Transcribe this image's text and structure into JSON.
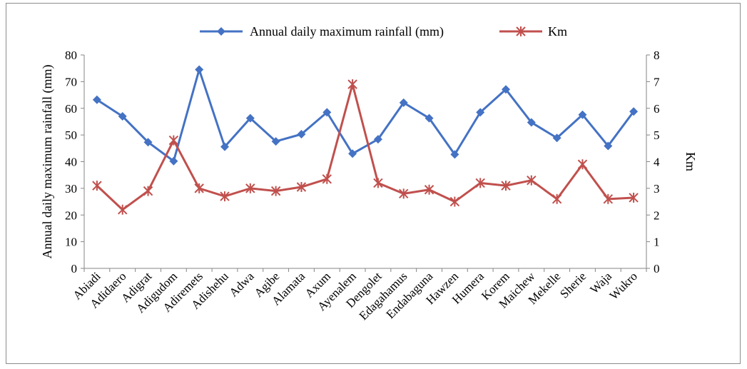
{
  "chart_data": {
    "type": "line",
    "categories": [
      "Abiadi",
      "Adidaero",
      "Adigrat",
      "Adigudom",
      "Adiremets",
      "Adishehu",
      "Adwa",
      "Agibe",
      "Alamata",
      "Axum",
      "Ayenalem",
      "Dengolet",
      "Edagahamus",
      "Endabaguna",
      "Hawzen",
      "Humera",
      "Korem",
      "Maichew",
      "Mekelle",
      "Sherie",
      "Waja",
      "Wukro"
    ],
    "series": [
      {
        "name": "Annual daily maximum rainfall (mm)",
        "axis": "left",
        "color": "#4472C4",
        "marker": "diamond",
        "values": [
          63.2,
          57.0,
          47.3,
          40.2,
          74.5,
          45.6,
          56.3,
          47.6,
          50.3,
          58.5,
          43.0,
          48.4,
          62.1,
          56.3,
          42.7,
          58.5,
          67.1,
          54.7,
          48.9,
          57.6,
          45.9,
          58.8
        ]
      },
      {
        "name": "Km",
        "axis": "right",
        "color": "#C0504D",
        "marker": "star",
        "values": [
          3.1,
          2.2,
          2.9,
          4.8,
          3.0,
          2.7,
          3.0,
          2.9,
          3.05,
          3.35,
          6.9,
          3.2,
          2.8,
          2.95,
          2.5,
          3.2,
          3.1,
          3.3,
          2.6,
          3.9,
          2.6,
          2.65
        ]
      }
    ],
    "ylabel": "Annual daily maximum rainfall (mm)",
    "y2label": "Km",
    "ylim": [
      0,
      80
    ],
    "y2lim": [
      0,
      8
    ],
    "yticks": [
      "0",
      "10",
      "20",
      "30",
      "40",
      "50",
      "60",
      "70",
      "80"
    ],
    "y2ticks": [
      "0",
      "1",
      "2",
      "3",
      "4",
      "5",
      "6",
      "7",
      "8"
    ],
    "grid": false,
    "legend": "top-center"
  }
}
